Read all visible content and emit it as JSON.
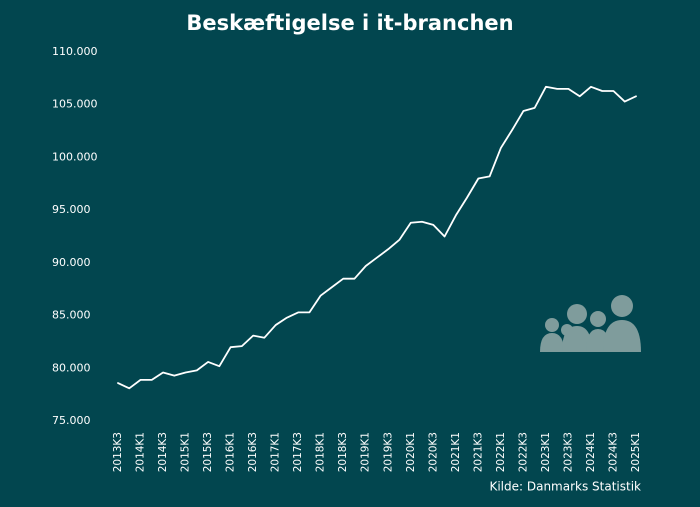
{
  "chart_data": {
    "type": "line",
    "title": "Beskæftigelse i it-branchen",
    "source": "Kilde: Danmarks Statistik",
    "categories": [
      "2013K3",
      null,
      "2014K1",
      null,
      "2014K3",
      null,
      "2015K1",
      null,
      "2015K3",
      null,
      "2016K1",
      null,
      "2016K3",
      null,
      "2017K1",
      null,
      "2017K3",
      null,
      "2018K1",
      null,
      "2018K3",
      null,
      "2019K1",
      null,
      "2019K3",
      null,
      "2020K1",
      null,
      "2020K3",
      null,
      "2021K1",
      null,
      "2021K3",
      null,
      "2022K1",
      null,
      "2022K3",
      null,
      "2023K1",
      null,
      "2023K3",
      null,
      "2024K1",
      null,
      "2024K3",
      null,
      "2025K1"
    ],
    "series": [
      {
        "color": "#ffffff",
        "values": [
          78600,
          78100,
          78900,
          78900,
          79600,
          79300,
          79600,
          79800,
          80600,
          80200,
          82000,
          82100,
          83100,
          82900,
          84100,
          84800,
          85300,
          85300,
          86900,
          87700,
          88500,
          88500,
          89700,
          90500,
          91300,
          92200,
          93800,
          93900,
          93600,
          92500,
          94500,
          96200,
          98000,
          98200,
          100900,
          102600,
          104400,
          104700,
          106700,
          106500,
          106500,
          105800,
          106700,
          106300,
          106300,
          105300,
          105800
        ]
      }
    ],
    "ylim": [
      75000,
      110000
    ],
    "yticks": [
      {
        "value": 75000,
        "label": "75.000"
      },
      {
        "value": 80000,
        "label": "80.000"
      },
      {
        "value": 85000,
        "label": "85.000"
      },
      {
        "value": 90000,
        "label": "90.000"
      },
      {
        "value": 95000,
        "label": "95.000"
      },
      {
        "value": 100000,
        "label": "100.000"
      },
      {
        "value": 105000,
        "label": "105.000"
      },
      {
        "value": 110000,
        "label": "110.000"
      }
    ],
    "grid": false
  }
}
